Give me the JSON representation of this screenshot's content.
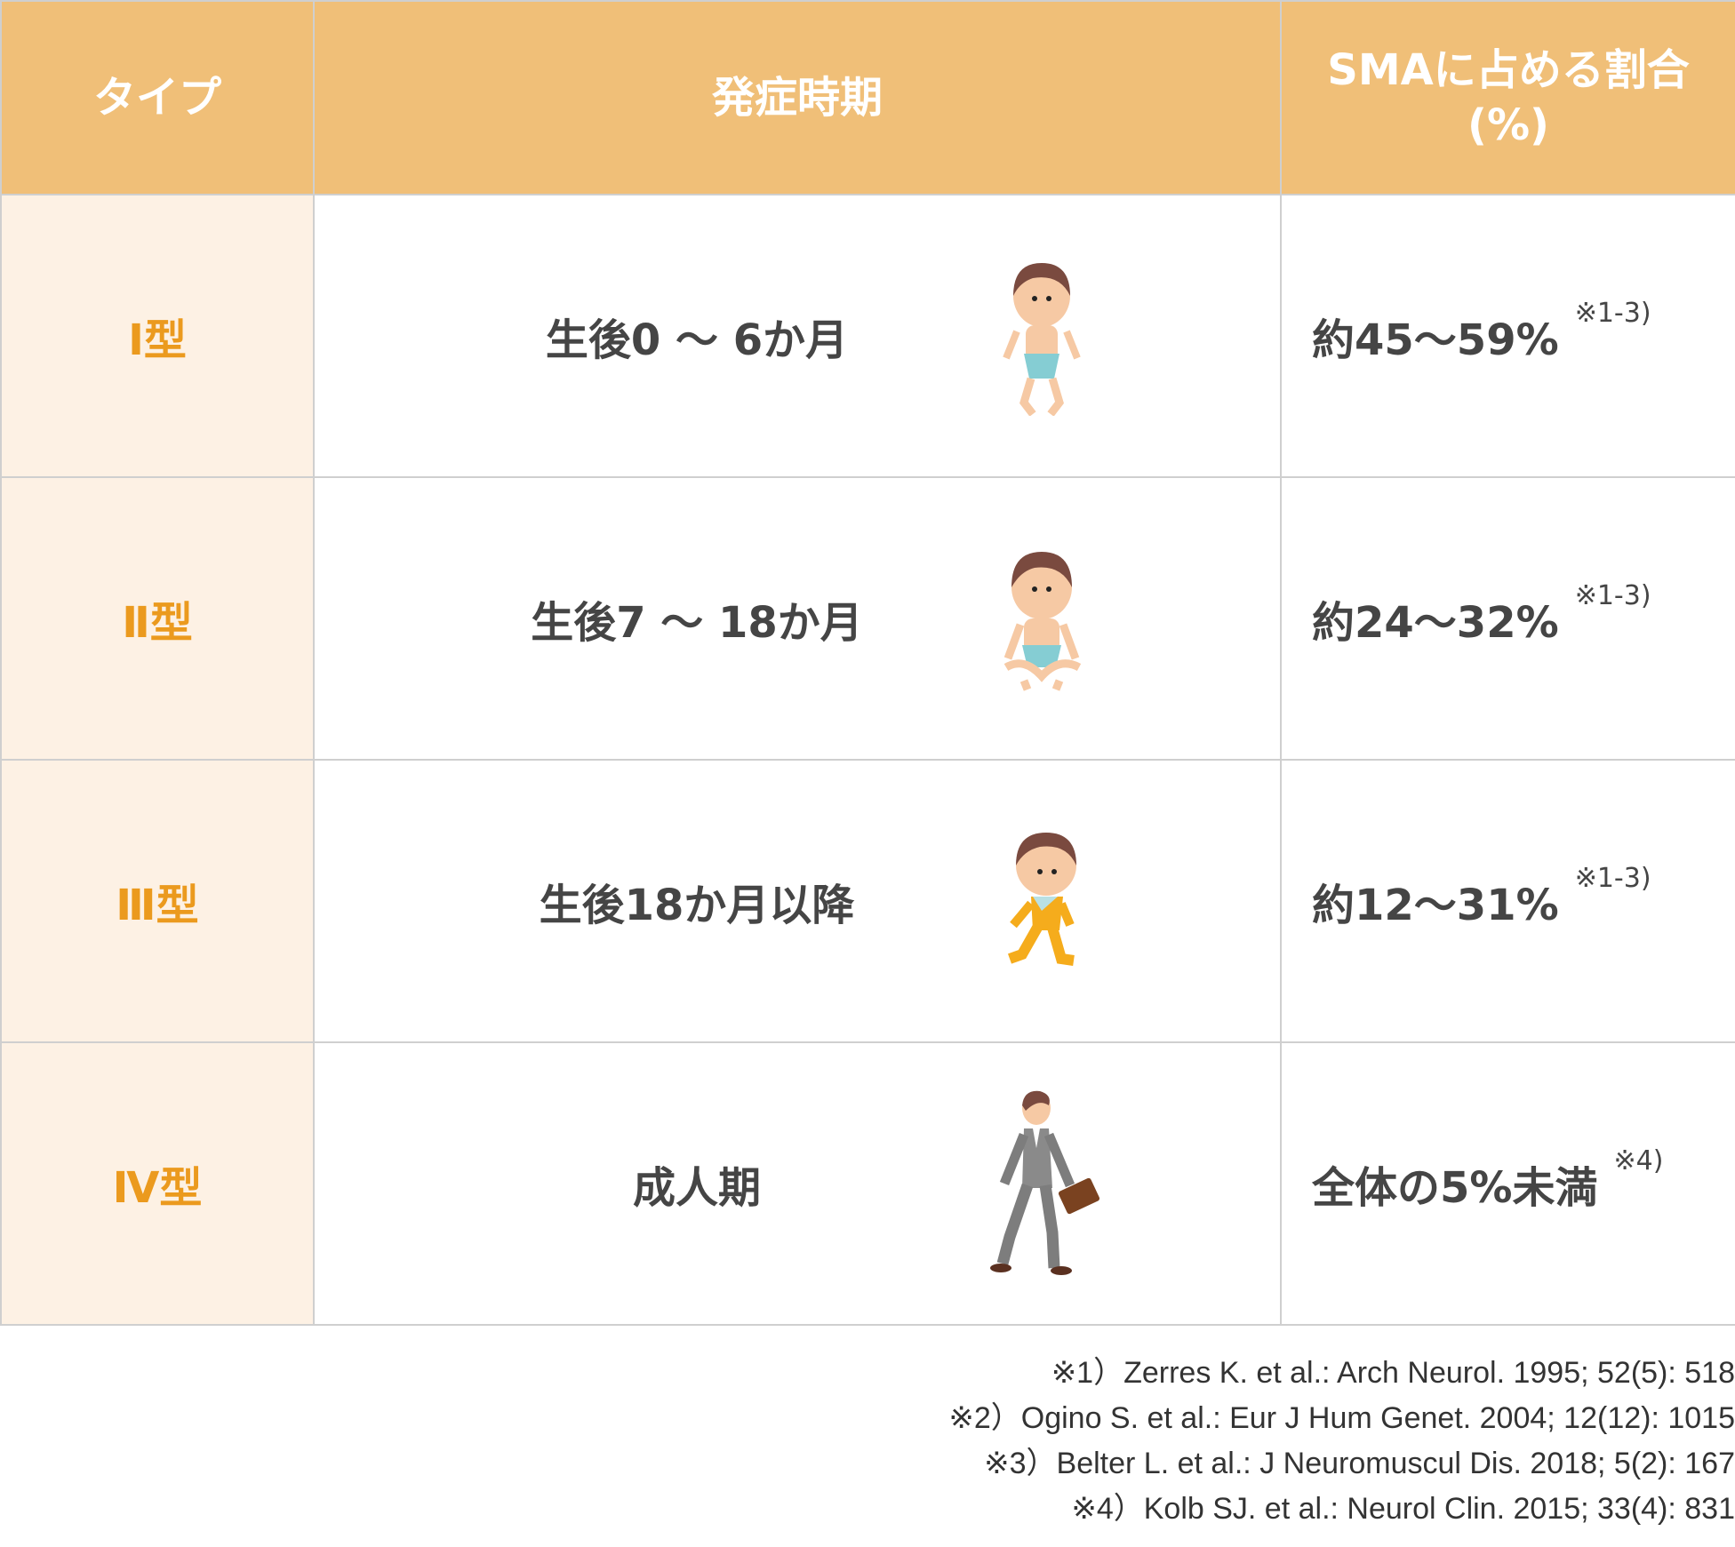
{
  "header": {
    "type": "タイプ",
    "onset": "発症時期",
    "ratio_line1": "SMAに占める割合",
    "ratio_line2": "(%)"
  },
  "rows": [
    {
      "type": "Ⅰ型",
      "onset": "生後0 ～ 6か月",
      "ratio": "約45～59%",
      "ref": "※1-3)",
      "figure": "baby-lying-icon"
    },
    {
      "type": "Ⅱ型",
      "onset": "生後7 ～ 18か月",
      "ratio": "約24～32%",
      "ref": "※1-3)",
      "figure": "baby-sitting-icon"
    },
    {
      "type": "Ⅲ型",
      "onset": "生後18か月以降",
      "ratio": "約12～31%",
      "ref": "※1-3)",
      "figure": "toddler-walking-icon"
    },
    {
      "type": "Ⅳ型",
      "onset": "成人期",
      "ratio": "全体の5%未満",
      "ref": "※4)",
      "figure": "adult-walking-icon"
    }
  ],
  "footnotes": [
    "※1）Zerres K. et al.: Arch Neurol. 1995; 52(5): 518",
    "※2）Ogino S. et al.: Eur J Hum Genet. 2004; 12(12): 1015",
    "※3）Belter L. et al.: J Neuromuscul Dis. 2018; 5(2): 167",
    "※4）Kolb SJ. et al.: Neurol Clin. 2015; 33(4): 831"
  ],
  "colors": {
    "header_bg": "#f0bf78",
    "type_bg": "#fdf1e4",
    "type_text": "#eb9a1e",
    "text": "#454545",
    "border": "#cfcfcf"
  }
}
